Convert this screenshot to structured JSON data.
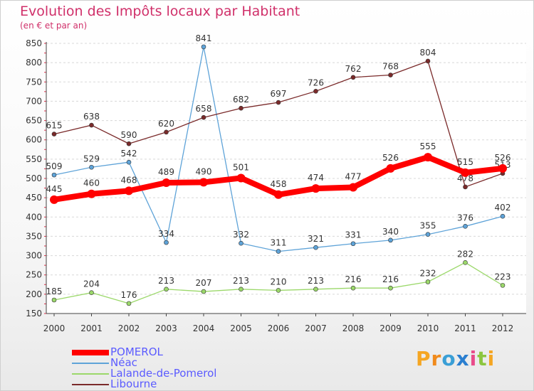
{
  "header": {
    "title": "Evolution des Impôts locaux par Habitant",
    "subtitle": "(en € et par an)"
  },
  "brand": {
    "text": "Proxiti",
    "letter_colors": [
      "#f5a623",
      "#f08a1c",
      "#3a9fd6",
      "#2b7fd0",
      "#e94b8a",
      "#8cc63f",
      "#f5a623"
    ]
  },
  "chart_data": {
    "type": "line",
    "categories": [
      "2000",
      "2001",
      "2002",
      "2003",
      "2004",
      "2005",
      "2006",
      "2007",
      "2008",
      "2009",
      "2010",
      "2011",
      "2012"
    ],
    "title": "Evolution des Impôts locaux par Habitant",
    "subtitle": "(en € et par an)",
    "xlabel": "",
    "ylabel": "",
    "ylim": [
      150,
      850
    ],
    "yticks": [
      150,
      200,
      250,
      300,
      350,
      400,
      450,
      500,
      550,
      600,
      650,
      700,
      750,
      800,
      850
    ],
    "grid": "horizontal dashed",
    "legend_position": "bottom-left",
    "series": [
      {
        "name": "POMEROL",
        "color": "#ff0000",
        "values": [
          445,
          460,
          468,
          489,
          490,
          501,
          458,
          474,
          477,
          526,
          555,
          515,
          526
        ]
      },
      {
        "name": "Néac",
        "color": "#5ea3d8",
        "values": [
          509,
          529,
          542,
          334,
          841,
          332,
          311,
          321,
          331,
          340,
          355,
          376,
          402
        ]
      },
      {
        "name": "Lalande-de-Pomerol",
        "color": "#9bd86a",
        "values": [
          185,
          204,
          176,
          213,
          207,
          213,
          210,
          213,
          216,
          216,
          232,
          282,
          223
        ]
      },
      {
        "name": "Libourne",
        "color": "#7a2a2a",
        "values": [
          615,
          638,
          590,
          620,
          658,
          682,
          697,
          726,
          762,
          768,
          804,
          478,
          513
        ]
      }
    ]
  }
}
